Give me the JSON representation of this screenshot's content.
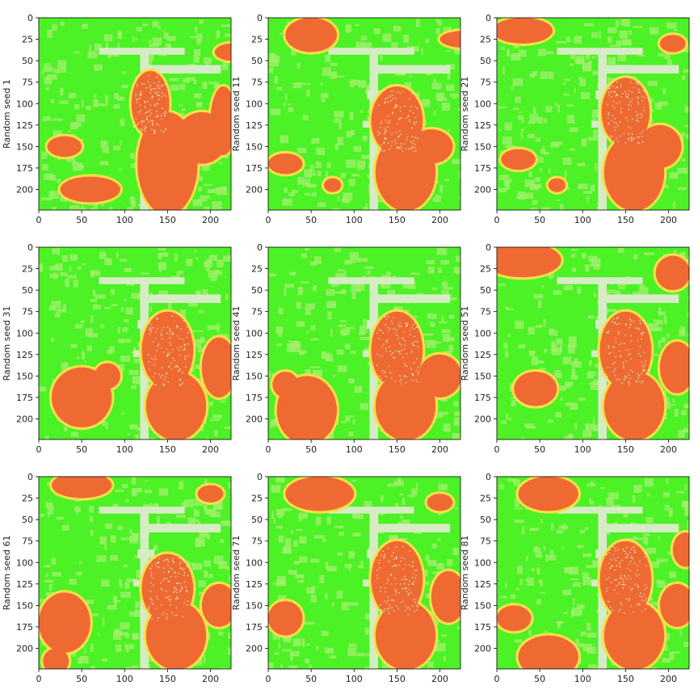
{
  "chart_data": {
    "type": "heatmap",
    "title": "",
    "image_extent": [
      0,
      224
    ],
    "xticks": [
      0,
      50,
      100,
      150,
      200
    ],
    "yticks": [
      0,
      25,
      50,
      75,
      100,
      125,
      150,
      175,
      200
    ],
    "colors": {
      "background": "#4cf126",
      "light_green": "#9ff06a",
      "orange": "#ef6a33",
      "yellow": "#f4e04a",
      "pale": "#d6ecc4"
    },
    "panels": [
      {
        "ylabel": "Random seed  1"
      },
      {
        "ylabel": "Random seed  11"
      },
      {
        "ylabel": "Random seed  21"
      },
      {
        "ylabel": "Random seed  31"
      },
      {
        "ylabel": "Random seed  41"
      },
      {
        "ylabel": "Random seed  51"
      },
      {
        "ylabel": "Random seed  61"
      },
      {
        "ylabel": "Random seed  71"
      },
      {
        "ylabel": "Random seed  81"
      }
    ]
  }
}
